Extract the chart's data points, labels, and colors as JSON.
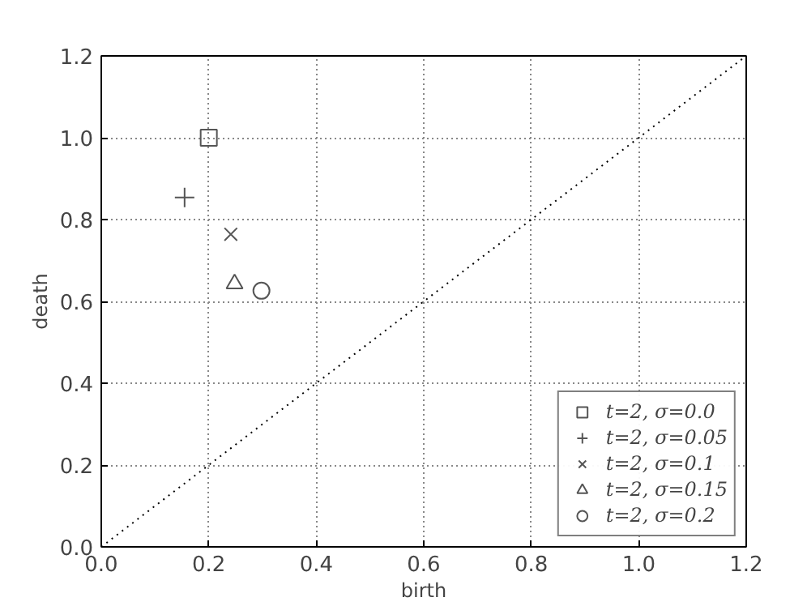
{
  "chart_data": {
    "type": "scatter",
    "xlabel": "birth",
    "ylabel": "death",
    "xlim": [
      0.0,
      1.2
    ],
    "ylim": [
      0.0,
      1.2
    ],
    "xticks": [
      {
        "value": 0,
        "label": "0.0"
      },
      0.2,
      0.4,
      0.6,
      0.8,
      {
        "value": 1,
        "label": "1.0"
      },
      1.2
    ],
    "yticks": [
      {
        "value": 0,
        "label": "0.0"
      },
      0.2,
      0.4,
      0.6,
      0.8,
      {
        "value": 1,
        "label": "1.0"
      },
      1.2
    ],
    "grid": true,
    "legend": "bottom right",
    "series": [
      {
        "type": "line",
        "color": "#000000",
        "line_style": "dotted",
        "x": [
          0.0,
          1.2
        ],
        "values": [
          0.0,
          1.2
        ]
      },
      {
        "name": "t=2, σ=0.0",
        "color": "#555555",
        "marker": "square",
        "x": [
          0.2
        ],
        "values": [
          1.0
        ]
      },
      {
        "name": "t=2, σ=0.05",
        "color": "#555555",
        "marker": "cross",
        "x": [
          0.155
        ],
        "values": [
          0.854
        ]
      },
      {
        "name": "t=2, σ=0.1",
        "color": "#555555",
        "marker": "x",
        "x": [
          0.241
        ],
        "values": [
          0.764
        ]
      },
      {
        "name": "t=2, σ=0.15",
        "color": "#555555",
        "marker": "triangle",
        "x": [
          0.248
        ],
        "values": [
          0.643
        ]
      },
      {
        "name": "t=2, σ=0.2",
        "color": "#555555",
        "marker": "circle",
        "x": [
          0.298
        ],
        "values": [
          0.626
        ]
      }
    ]
  }
}
